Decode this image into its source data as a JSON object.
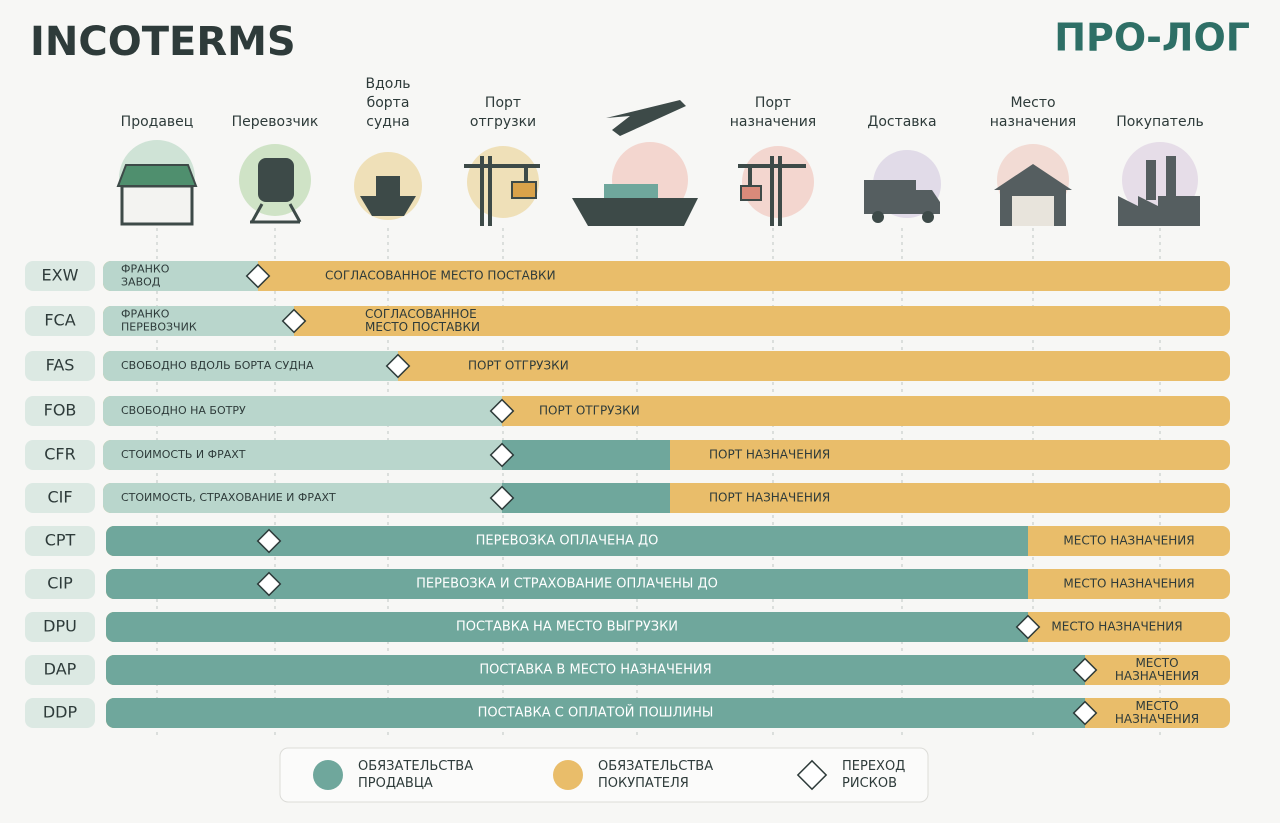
{
  "header": {
    "title": "INCOTERMS",
    "brand": "ПРО-ЛОГ"
  },
  "stages": [
    {
      "label": [
        "Продавец"
      ]
    },
    {
      "label": [
        "Перевозчик"
      ]
    },
    {
      "label": [
        "Вдоль",
        "борта",
        "судна"
      ]
    },
    {
      "label": [
        "Порт",
        "отгрузки"
      ]
    },
    {
      "label": [
        "Порт",
        "назначения"
      ]
    },
    {
      "label": [
        "Доставка"
      ]
    },
    {
      "label": [
        "Место",
        "назначения"
      ]
    },
    {
      "label": [
        "Покупатель"
      ]
    }
  ],
  "rows": [
    {
      "code": "EXW",
      "seller": [
        "ФРАНКО",
        "ЗАВОД"
      ],
      "buyer": [
        "СОГЛАСОВАННОЕ МЕСТО ПОСТАВКИ"
      ]
    },
    {
      "code": "FCA",
      "seller": [
        "ФРАНКО",
        "ПЕРЕВОЗЧИК"
      ],
      "buyer": [
        "СОГЛАСОВАННОЕ",
        "МЕСТО ПОСТАВКИ"
      ]
    },
    {
      "code": "FAS",
      "seller": [
        "СВОБОДНО ВДОЛЬ БОРТА СУДНА"
      ],
      "buyer": [
        "ПОРТ ОТГРУЗКИ"
      ]
    },
    {
      "code": "FOB",
      "seller": [
        "СВОБОДНО НА БОТРУ"
      ],
      "buyer": [
        "ПОРТ ОТГРУЗКИ"
      ]
    },
    {
      "code": "CFR",
      "seller": [
        "СТОИМОСТЬ И ФРАХТ"
      ],
      "buyer": [
        "ПОРТ НАЗНАЧЕНИЯ"
      ]
    },
    {
      "code": "CIF",
      "seller": [
        "СТОИМОСТЬ, СТРАХОВАНИЕ И ФРАХТ"
      ],
      "buyer": [
        "ПОРТ НАЗНАЧЕНИЯ"
      ]
    },
    {
      "code": "CPT",
      "seller": [
        "ПЕРЕВОЗКА ОПЛАЧЕНА ДО"
      ],
      "buyer": [
        "МЕСТО НАЗНАЧЕНИЯ"
      ]
    },
    {
      "code": "CIP",
      "seller": [
        "ПЕРЕВОЗКА И СТРАХОВАНИЕ ОПЛАЧЕНЫ ДО"
      ],
      "buyer": [
        "МЕСТО НАЗНАЧЕНИЯ"
      ]
    },
    {
      "code": "DPU",
      "seller": [
        "ПОСТАВКА НА МЕСТО ВЫГРУЗКИ"
      ],
      "buyer": [
        "МЕСТО НАЗНАЧЕНИЯ"
      ]
    },
    {
      "code": "DAP",
      "seller": [
        "ПОСТАВКА В МЕСТО НАЗНАЧЕНИЯ"
      ],
      "buyer": [
        "МЕСТО",
        "НАЗНАЧЕНИЯ"
      ]
    },
    {
      "code": "DDP",
      "seller": [
        "ПОСТАВКА С ОПЛАТОЙ ПОШЛИНЫ"
      ],
      "buyer": [
        "МЕСТО",
        "НАЗНАЧЕНИЯ"
      ]
    }
  ],
  "legend": [
    {
      "label": [
        "ОБЯЗАТЕЛЬСТВА",
        "ПРОДАВЦА"
      ]
    },
    {
      "label": [
        "ОБЯЗАТЕЛЬСТВА",
        "ПОКУПАТЕЛЯ"
      ]
    },
    {
      "label": [
        "ПЕРЕХОД",
        "РИСКОВ"
      ]
    }
  ]
}
